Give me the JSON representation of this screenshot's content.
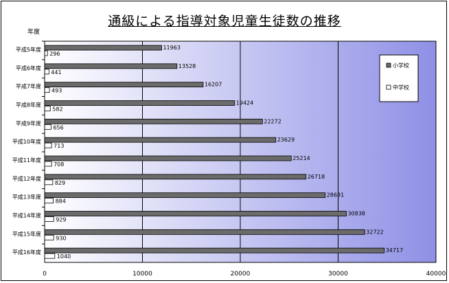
{
  "chart_data": {
    "type": "bar",
    "orientation": "horizontal",
    "title": "通級による指導対象児童生徒数の推移",
    "ylabel": "年度",
    "xlim": [
      0,
      40000
    ],
    "x_ticks": [
      "0",
      "10000",
      "20000",
      "30000",
      "40000"
    ],
    "categories": [
      "平成5年度",
      "平成6年度",
      "平成7年度",
      "平成8年度",
      "平成9年度",
      "平成10年度",
      "平成11年度",
      "平成12年度",
      "平成13年度",
      "平成14年度",
      "平成15年度",
      "平成16年度"
    ],
    "series": [
      {
        "name": "小学校",
        "values": [
          11963,
          13528,
          16207,
          19424,
          22272,
          23629,
          25214,
          26718,
          28681,
          30838,
          32722,
          34717
        ]
      },
      {
        "name": "中学校",
        "values": [
          296,
          441,
          493,
          582,
          656,
          713,
          708,
          829,
          884,
          929,
          930,
          1040
        ]
      }
    ],
    "legend_position": "right",
    "grid": true
  },
  "colors": {
    "series1": "#6b6b6b",
    "series2": "#ffffff",
    "plot_gradient_start": "#ffffff",
    "plot_gradient_end": "#8f90e6"
  }
}
